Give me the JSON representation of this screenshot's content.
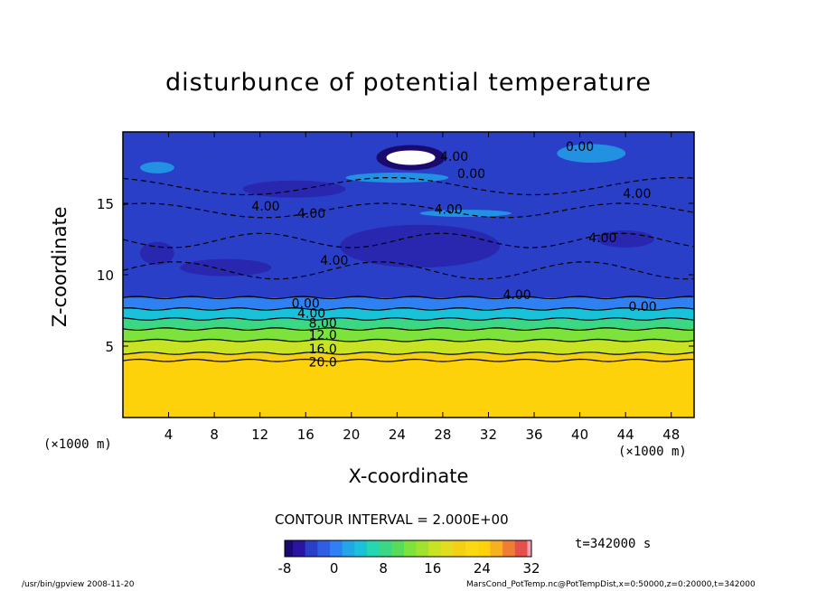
{
  "chart_data": {
    "type": "heatmap",
    "title": "disturbunce of potential temperature",
    "xlabel": "X-coordinate",
    "ylabel": "Z-coordinate",
    "x_unit": "(×1000 m)",
    "z_unit": "(×1000 m)",
    "xlim": [
      0,
      50
    ],
    "ylim": [
      0,
      20
    ],
    "x_ticks": [
      4,
      8,
      12,
      16,
      20,
      24,
      28,
      32,
      36,
      40,
      44,
      48
    ],
    "y_ticks": [
      5,
      10,
      15
    ],
    "contour_labels": [
      {
        "text": "0.00",
        "x": 40,
        "z": 19.0
      },
      {
        "text": "4.00",
        "x": 29,
        "z": 18.3
      },
      {
        "text": "0.00",
        "x": 30.5,
        "z": 17.1
      },
      {
        "text": "4.00",
        "x": 45,
        "z": 15.7
      },
      {
        "text": "4.00",
        "x": 12.5,
        "z": 14.8
      },
      {
        "text": "4.00",
        "x": 16.5,
        "z": 14.3
      },
      {
        "text": "4.00",
        "x": 28.5,
        "z": 14.6
      },
      {
        "text": "4.00",
        "x": 42,
        "z": 12.6
      },
      {
        "text": "4.00",
        "x": 18.5,
        "z": 11.0
      },
      {
        "text": "4.00",
        "x": 34.5,
        "z": 8.6
      },
      {
        "text": "0.00",
        "x": 16,
        "z": 8.0
      },
      {
        "text": "0.00",
        "x": 45.5,
        "z": 7.8
      },
      {
        "text": "4.00",
        "x": 16.5,
        "z": 7.3
      },
      {
        "text": "8.00",
        "x": 17.5,
        "z": 6.6
      },
      {
        "text": "12.0",
        "x": 17.5,
        "z": 5.8
      },
      {
        "text": "16.0",
        "x": 17.5,
        "z": 4.8
      },
      {
        "text": "20.0",
        "x": 17.5,
        "z": 3.9
      }
    ],
    "contour_interval_label": "CONTOUR INTERVAL = 2.000E+00",
    "colorbar": {
      "min": -8,
      "max": 32,
      "ticks": [
        -8,
        0,
        8,
        16,
        24,
        32
      ]
    },
    "time_label": "t=342000 s",
    "layers": [
      {
        "z_top": 20,
        "value": -4
      },
      {
        "z_top": 8.4,
        "value": 0
      },
      {
        "z_top": 7.6,
        "value": 4
      },
      {
        "z_top": 6.9,
        "value": 8
      },
      {
        "z_top": 6.2,
        "value": 12
      },
      {
        "z_top": 5.4,
        "value": 16
      },
      {
        "z_top": 4.5,
        "value": 20
      },
      {
        "z_top": 4.0,
        "value": 24
      }
    ]
  },
  "footer": {
    "left": "/usr/bin/gpview  2008-11-20",
    "right": "MarsCond_PotTemp.nc@PotTempDist,x=0:50000,z=0:20000,t=342000"
  },
  "colors": {
    "white_blob": "#ffffff",
    "lowest": "#1a0a6e",
    "highest": "#fdd20a"
  }
}
